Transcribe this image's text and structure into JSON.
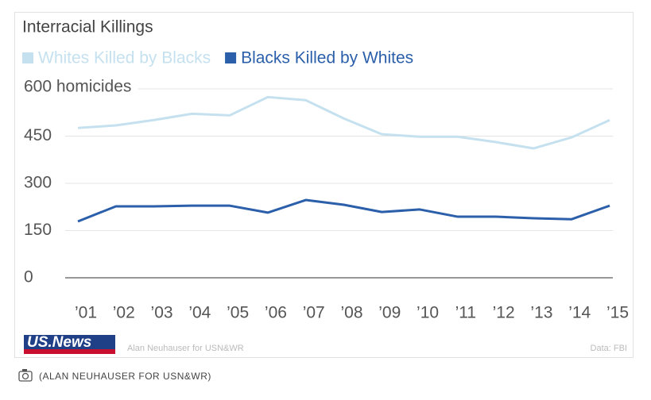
{
  "chart_data": {
    "type": "line",
    "title": "Interracial Killings",
    "categories": [
      "’01",
      "’02",
      "’03",
      "’04",
      "’05",
      "’06",
      "’07",
      "’08",
      "’09",
      "’10",
      "’11",
      "’12",
      "’13",
      "’14",
      "’15"
    ],
    "series": [
      {
        "name": "Whites Killed by Blacks",
        "color": "#c5e1ef",
        "values": [
          476,
          484,
          501,
          521,
          516,
          574,
          564,
          506,
          456,
          448,
          448,
          431,
          411,
          446,
          501
        ]
      },
      {
        "name": "Blacks Killed by Whites",
        "color": "#2b5faa",
        "values": [
          179,
          227,
          227,
          229,
          229,
          207,
          247,
          232,
          209,
          217,
          194,
          194,
          189,
          186,
          229
        ]
      }
    ],
    "ylim": [
      0,
      600
    ],
    "yticks": [
      0,
      150,
      300,
      450,
      {
        "value": 600,
        "label": "600 homicides"
      }
    ],
    "grid": true,
    "logo": "US.News",
    "credit": "Alan Neuhauser for USN&WR",
    "source": "Data: FBI"
  },
  "caption": "(ALAN NEUHAUSER FOR USN&WR)"
}
